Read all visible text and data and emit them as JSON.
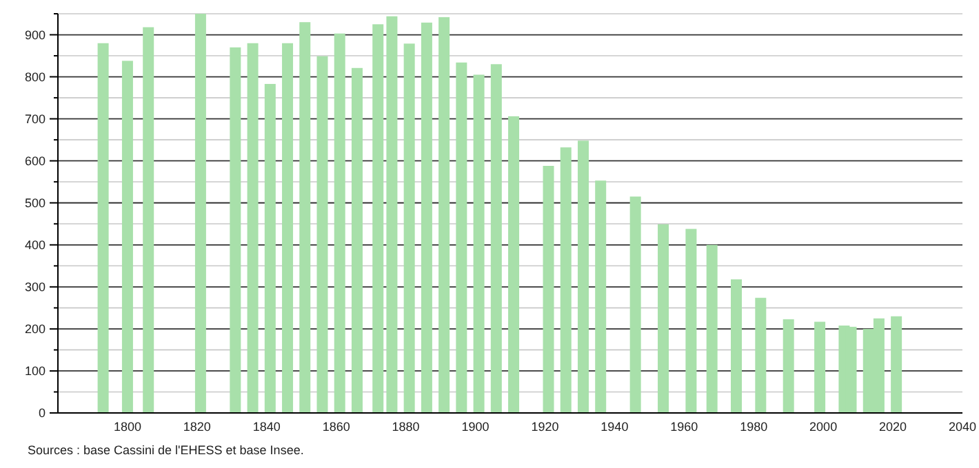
{
  "chart_data": {
    "type": "bar",
    "color": "#a8e0aa",
    "x": [
      1793,
      1800,
      1806,
      1821,
      1831,
      1836,
      1841,
      1846,
      1851,
      1856,
      1861,
      1866,
      1872,
      1876,
      1881,
      1886,
      1891,
      1896,
      1901,
      1906,
      1911,
      1921,
      1926,
      1931,
      1936,
      1946,
      1954,
      1962,
      1968,
      1975,
      1982,
      1990,
      1999,
      2006,
      2008,
      2013,
      2016,
      2021
    ],
    "values": [
      880,
      838,
      918,
      950,
      870,
      880,
      783,
      880,
      930,
      849,
      903,
      821,
      925,
      944,
      879,
      929,
      942,
      834,
      805,
      830,
      706,
      588,
      632,
      648,
      553,
      515,
      449,
      438,
      400,
      318,
      274,
      223,
      217,
      208,
      205,
      200,
      225,
      230
    ],
    "xlim": [
      1780,
      2040
    ],
    "xticks": [
      1800,
      1820,
      1840,
      1860,
      1880,
      1900,
      1920,
      1940,
      1960,
      1980,
      2000,
      2020,
      2040
    ],
    "ylim": [
      0,
      950
    ],
    "yticks": [
      0,
      {
        "value": 50,
        "label": null
      },
      100,
      {
        "value": 150,
        "label": null
      },
      200,
      {
        "value": 250,
        "label": null
      },
      300,
      {
        "value": 350,
        "label": null
      },
      400,
      {
        "value": 450,
        "label": null
      },
      500,
      {
        "value": 550,
        "label": null
      },
      600,
      {
        "value": 650,
        "label": null
      },
      700,
      {
        "value": 750,
        "label": null
      },
      800,
      {
        "value": 850,
        "label": null
      },
      900,
      {
        "value": 950,
        "label": null
      }
    ],
    "grid": "y",
    "annotations": [
      "Sources : base Cassini de l'EHESS et base Insee."
    ]
  }
}
